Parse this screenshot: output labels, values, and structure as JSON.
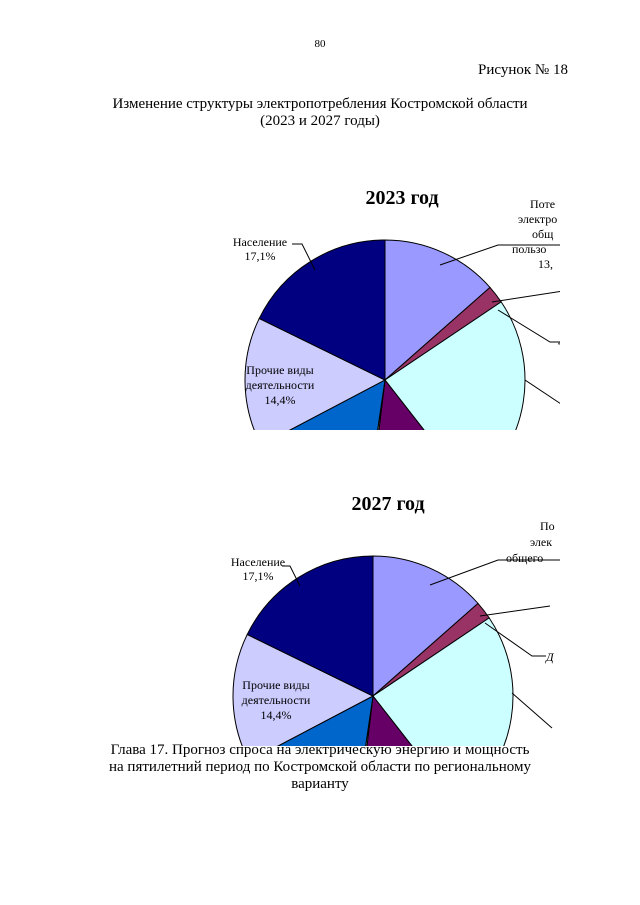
{
  "page": {
    "page_number": "80",
    "figure_number": "Рисунок № 18",
    "title_line1": "Изменение структуры электропотребления Костромской области",
    "title_line2": "(2023 и 2027 годы)",
    "caption_line1": "Глава 17. Прогноз спроса на электрическую энергию и мощность",
    "caption_line2": "на пятилетний период по Костромской области по региональному",
    "caption_line3": "варианту"
  },
  "colors": {
    "population": "#000080",
    "other": "#ccccff",
    "blue_slice": "#0066cc",
    "purple_slice": "#660066",
    "cyan_slice": "#ccffff",
    "magenta_slice": "#993366",
    "lavender_slice": "#9999ff",
    "outline": "#000000"
  },
  "chart_data": [
    {
      "type": "pie",
      "title": "2023 год",
      "slices": [
        {
          "key": "lavender",
          "share": 0.13
        },
        {
          "key": "magenta",
          "share": 0.02
        },
        {
          "key": "cyan",
          "share": 0.23
        },
        {
          "key": "purple",
          "share": 0.12
        },
        {
          "key": "thin",
          "share": 0.004
        },
        {
          "key": "blue",
          "share": 0.144
        },
        {
          "key": "other",
          "share": 0.144
        },
        {
          "key": "population",
          "share": 0.171
        }
      ],
      "labels": {
        "population": [
          "Население",
          "17,1%"
        ],
        "other": [
          "Прочие виды",
          "деятельности",
          "14,4%"
        ],
        "lavender_partial": [
          "Поте",
          "электро",
          "общ",
          "пользо",
          "13,"
        ],
        "magenta_partial": [
          "4"
        ]
      }
    },
    {
      "type": "pie",
      "title": "2027 год",
      "slices": [
        {
          "key": "lavender",
          "share": 0.13
        },
        {
          "key": "magenta",
          "share": 0.02
        },
        {
          "key": "cyan",
          "share": 0.23
        },
        {
          "key": "purple",
          "share": 0.12
        },
        {
          "key": "thin",
          "share": 0.004
        },
        {
          "key": "blue",
          "share": 0.144
        },
        {
          "key": "other",
          "share": 0.144
        },
        {
          "key": "population",
          "share": 0.171
        }
      ],
      "labels": {
        "population": [
          "Население",
          "17,1%"
        ],
        "other": [
          "Прочие виды",
          "деятельности",
          "14,4%"
        ],
        "lavender_partial": [
          "По",
          "элек",
          "общего"
        ],
        "magenta_partial": [
          "Д"
        ]
      }
    }
  ]
}
